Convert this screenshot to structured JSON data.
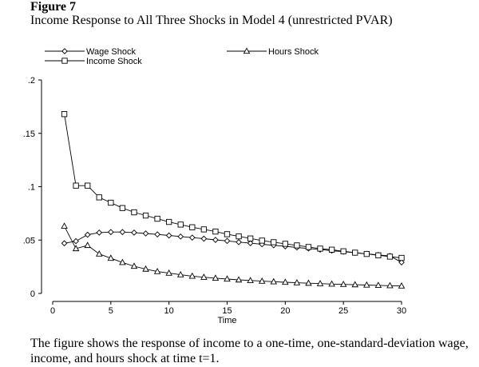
{
  "figure": {
    "label": "Figure 7",
    "title": "Income Response to All Three Shocks in Model 4 (unrestricted PVAR)",
    "caption": "The figure shows the response of income to a one-time, one-standard-deviation wage, income, and hours shock at time t=1."
  },
  "chart_data": {
    "type": "line",
    "xlabel": "Time",
    "ylabel": "",
    "xlim": [
      0,
      30
    ],
    "ylim": [
      0,
      0.2
    ],
    "x_ticks": [
      0,
      5,
      10,
      15,
      20,
      25,
      30
    ],
    "x_tick_labels": [
      "0",
      "5",
      "10",
      "15",
      "20",
      "25",
      "30"
    ],
    "y_ticks": [
      0,
      0.05,
      0.1,
      0.15,
      0.2
    ],
    "y_tick_labels": [
      "0",
      ".05",
      ".1",
      ".15",
      ".2"
    ],
    "grid": false,
    "legend_position": "top",
    "x": [
      1,
      2,
      3,
      4,
      5,
      6,
      7,
      8,
      9,
      10,
      11,
      12,
      13,
      14,
      15,
      16,
      17,
      18,
      19,
      20,
      21,
      22,
      23,
      24,
      25,
      26,
      27,
      28,
      29,
      30
    ],
    "series": [
      {
        "name": "Wage Shock",
        "marker": "diamond",
        "values": [
          0.047,
          0.049,
          0.055,
          0.057,
          0.0575,
          0.0575,
          0.057,
          0.0562,
          0.0553,
          0.0543,
          0.0533,
          0.0523,
          0.0513,
          0.0502,
          0.0492,
          0.0481,
          0.0471,
          0.0461,
          0.0451,
          0.0441,
          0.0431,
          0.0421,
          0.0411,
          0.0401,
          0.0391,
          0.0381,
          0.0371,
          0.0361,
          0.0351,
          0.0291
        ]
      },
      {
        "name": "Hours Shock",
        "marker": "triangle",
        "values": [
          0.063,
          0.042,
          0.045,
          0.037,
          0.033,
          0.029,
          0.0255,
          0.0228,
          0.0205,
          0.019,
          0.0175,
          0.0162,
          0.0152,
          0.0143,
          0.0135,
          0.0127,
          0.0121,
          0.0115,
          0.011,
          0.0105,
          0.01,
          0.0096,
          0.0092,
          0.0088,
          0.0085,
          0.0082,
          0.0079,
          0.0076,
          0.0073,
          0.007
        ]
      },
      {
        "name": "Income Shock",
        "marker": "square",
        "values": [
          0.168,
          0.101,
          0.101,
          0.09,
          0.085,
          0.08,
          0.076,
          0.073,
          0.07,
          0.067,
          0.0645,
          0.062,
          0.06,
          0.058,
          0.0555,
          0.0535,
          0.0515,
          0.0495,
          0.048,
          0.0465,
          0.045,
          0.0435,
          0.042,
          0.041,
          0.0395,
          0.0382,
          0.037,
          0.0357,
          0.0345,
          0.0333
        ]
      }
    ]
  }
}
